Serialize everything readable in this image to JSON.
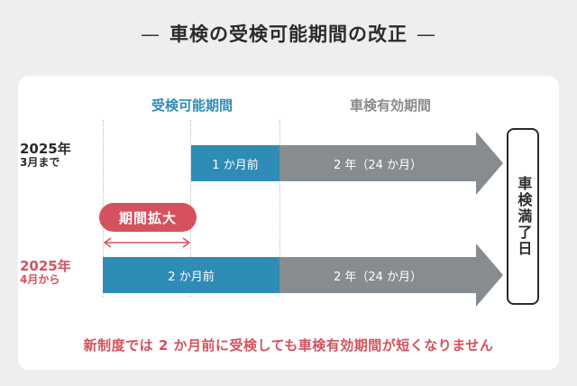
{
  "title": "車検の受検可能期間の改正",
  "title_dash": "—",
  "headers": {
    "inspection_window": "受検可能期間",
    "validity_period": "車検有効期間"
  },
  "rows": [
    {
      "year": "2025年",
      "until": "3月まで",
      "blue_label": "1 か月前",
      "gray_label": "2 年（24 か月）"
    },
    {
      "year": "2025年",
      "from": "4月から",
      "blue_label": "2 か月前",
      "gray_label": "2 年（24 か月）"
    }
  ],
  "badge": "期間拡大",
  "expiry": "車検満了日",
  "note": "新制度では 2 か月前に受検しても車検有効期間が短くなりません",
  "colors": {
    "blue": "#2e8cb6",
    "gray": "#868c8f",
    "red": "#d6515e",
    "dark": "#2b2b2b"
  }
}
